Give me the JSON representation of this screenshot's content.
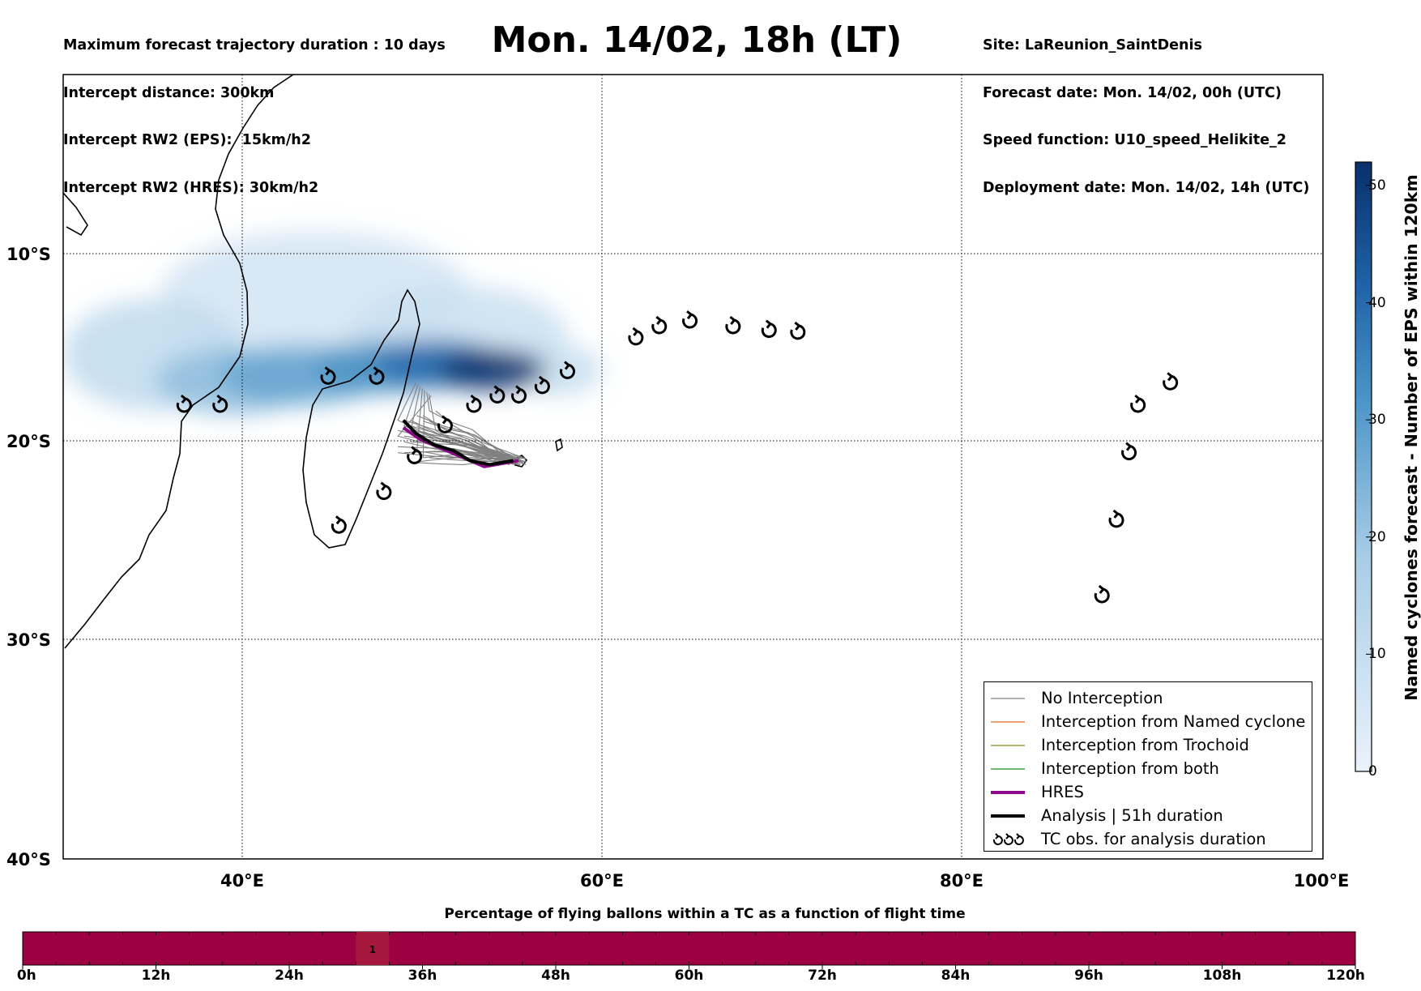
{
  "header": {
    "left_lines": [
      "Maximum forecast trajectory duration : 10 days",
      "Intercept distance: 300km",
      "Intercept RW2 (EPS):  15km/h2",
      "Intercept RW2 (HRES): 30km/h2"
    ],
    "right_lines": [
      "Site: LaReunion_SaintDenis",
      "Forecast date: Mon. 14/02, 00h (UTC)",
      "Speed function: U10_speed_Helikite_2",
      "Deployment date: Mon. 14/02, 14h (UTC)"
    ],
    "title": "Mon. 14/02, 18h (LT)"
  },
  "map": {
    "lon_range": [
      30,
      100
    ],
    "lat_range": [
      -40,
      1
    ],
    "lon_ticks": [
      {
        "value": 40,
        "label": "40°E"
      },
      {
        "value": 60,
        "label": "60°E"
      },
      {
        "value": 80,
        "label": "80°E"
      },
      {
        "value": 100,
        "label": "100°E"
      }
    ],
    "lat_ticks": [
      {
        "value": -10,
        "label": "10°S"
      },
      {
        "value": -20,
        "label": "20°S"
      },
      {
        "value": -30,
        "label": "30°S"
      },
      {
        "value": -40,
        "label": "40°S"
      }
    ],
    "tc_obs": [
      [
        36.7,
        -18.1
      ],
      [
        38.7,
        -18.1
      ],
      [
        44.7,
        -16.6
      ],
      [
        47.4,
        -16.6
      ],
      [
        49.5,
        -20.8
      ],
      [
        51.2,
        -19.2
      ],
      [
        52.8,
        -18.1
      ],
      [
        54.1,
        -17.6
      ],
      [
        55.3,
        -17.6
      ],
      [
        56.6,
        -17.1
      ],
      [
        58.0,
        -16.3
      ],
      [
        61.8,
        -14.5
      ],
      [
        63.1,
        -13.9
      ],
      [
        64.8,
        -13.6
      ],
      [
        67.2,
        -13.9
      ],
      [
        69.2,
        -14.1
      ],
      [
        70.8,
        -14.2
      ],
      [
        45.3,
        -24.3
      ],
      [
        47.8,
        -22.6
      ],
      [
        91.5,
        -16.9
      ],
      [
        89.7,
        -18.1
      ],
      [
        89.2,
        -20.6
      ],
      [
        88.5,
        -24.0
      ],
      [
        87.7,
        -27.8
      ]
    ],
    "analysis_track": [
      [
        48.9,
        -18.9
      ],
      [
        49.6,
        -19.6
      ],
      [
        50.6,
        -20.2
      ],
      [
        51.7,
        -20.5
      ],
      [
        52.6,
        -21.0
      ],
      [
        53.7,
        -21.2
      ],
      [
        55.0,
        -21.0
      ]
    ],
    "hres_track": [
      [
        48.9,
        -19.3
      ],
      [
        49.8,
        -19.9
      ],
      [
        50.8,
        -20.3
      ],
      [
        52.1,
        -20.8
      ],
      [
        53.4,
        -21.3
      ],
      [
        55.3,
        -21.0
      ]
    ],
    "cyclone_density": [
      {
        "lon": 53.8,
        "lat": -16.2,
        "value": 52,
        "rx": 3.0,
        "ry": 1.1
      },
      {
        "lon": 50.8,
        "lat": -15.9,
        "value": 40,
        "rx": 3.6,
        "ry": 1.3
      },
      {
        "lon": 47.5,
        "lat": -16.1,
        "value": 32,
        "rx": 3.8,
        "ry": 1.4
      },
      {
        "lon": 43.2,
        "lat": -16.5,
        "value": 28,
        "rx": 4.5,
        "ry": 1.6
      },
      {
        "lon": 39.5,
        "lat": -16.8,
        "value": 22,
        "rx": 4.3,
        "ry": 1.8
      },
      {
        "lon": 35.0,
        "lat": -15.4,
        "value": 12,
        "rx": 5.0,
        "ry": 3.0
      },
      {
        "lon": 44.0,
        "lat": -12.0,
        "value": 7,
        "rx": 8.5,
        "ry": 3.2
      },
      {
        "lon": 52.0,
        "lat": -14.3,
        "value": 9,
        "rx": 6.0,
        "ry": 2.6
      },
      {
        "lon": 57.5,
        "lat": -16.2,
        "value": 10,
        "rx": 2.4,
        "ry": 1.4
      }
    ]
  },
  "legend": {
    "items": [
      {
        "label": "No Interception",
        "color": "#808080",
        "width": 1.2
      },
      {
        "label": "Interception from Named cyclone",
        "color": "#e8661b",
        "width": 1.2
      },
      {
        "label": "Interception from Trochoid",
        "color": "#8b8b1b",
        "width": 1.2
      },
      {
        "label": "Interception from both",
        "color": "#1a8c1a",
        "width": 1.2
      },
      {
        "label": "HRES",
        "color": "#8b0a8b",
        "width": 4
      },
      {
        "label": "Analysis | 51h duration",
        "color": "#000000",
        "width": 4
      },
      {
        "label": "TC obs. for analysis duration",
        "symbol": "tc-obs-triple-icon"
      }
    ]
  },
  "colorbar": {
    "label": "Named cyclones forecast - Number of EPS within 120km",
    "range": [
      0,
      52
    ],
    "ticks": [
      {
        "value": 0,
        "label": "0"
      },
      {
        "value": 10,
        "label": "10"
      },
      {
        "value": 20,
        "label": "20"
      },
      {
        "value": 30,
        "label": "30"
      },
      {
        "value": 40,
        "label": "40"
      },
      {
        "value": 50,
        "label": "50"
      }
    ],
    "color_low": "#eaf2fb",
    "color_high": "#08306b"
  },
  "bottom_bar": {
    "title": "Percentage of flying ballons within a TC as a function of flight time",
    "range_hours": [
      0,
      120
    ],
    "color": "#9e0142",
    "highlight": {
      "from_h": 30,
      "to_h": 33,
      "label": "1",
      "color": "#a6173e"
    },
    "ticks": [
      {
        "value": 0,
        "label": "0h"
      },
      {
        "value": 12,
        "label": "12h"
      },
      {
        "value": 24,
        "label": "24h"
      },
      {
        "value": 36,
        "label": "36h"
      },
      {
        "value": 48,
        "label": "48h"
      },
      {
        "value": 60,
        "label": "60h"
      },
      {
        "value": 72,
        "label": "72h"
      },
      {
        "value": 84,
        "label": "84h"
      },
      {
        "value": 96,
        "label": "96h"
      },
      {
        "value": 108,
        "label": "108h"
      },
      {
        "value": 120,
        "label": "120h"
      }
    ]
  }
}
